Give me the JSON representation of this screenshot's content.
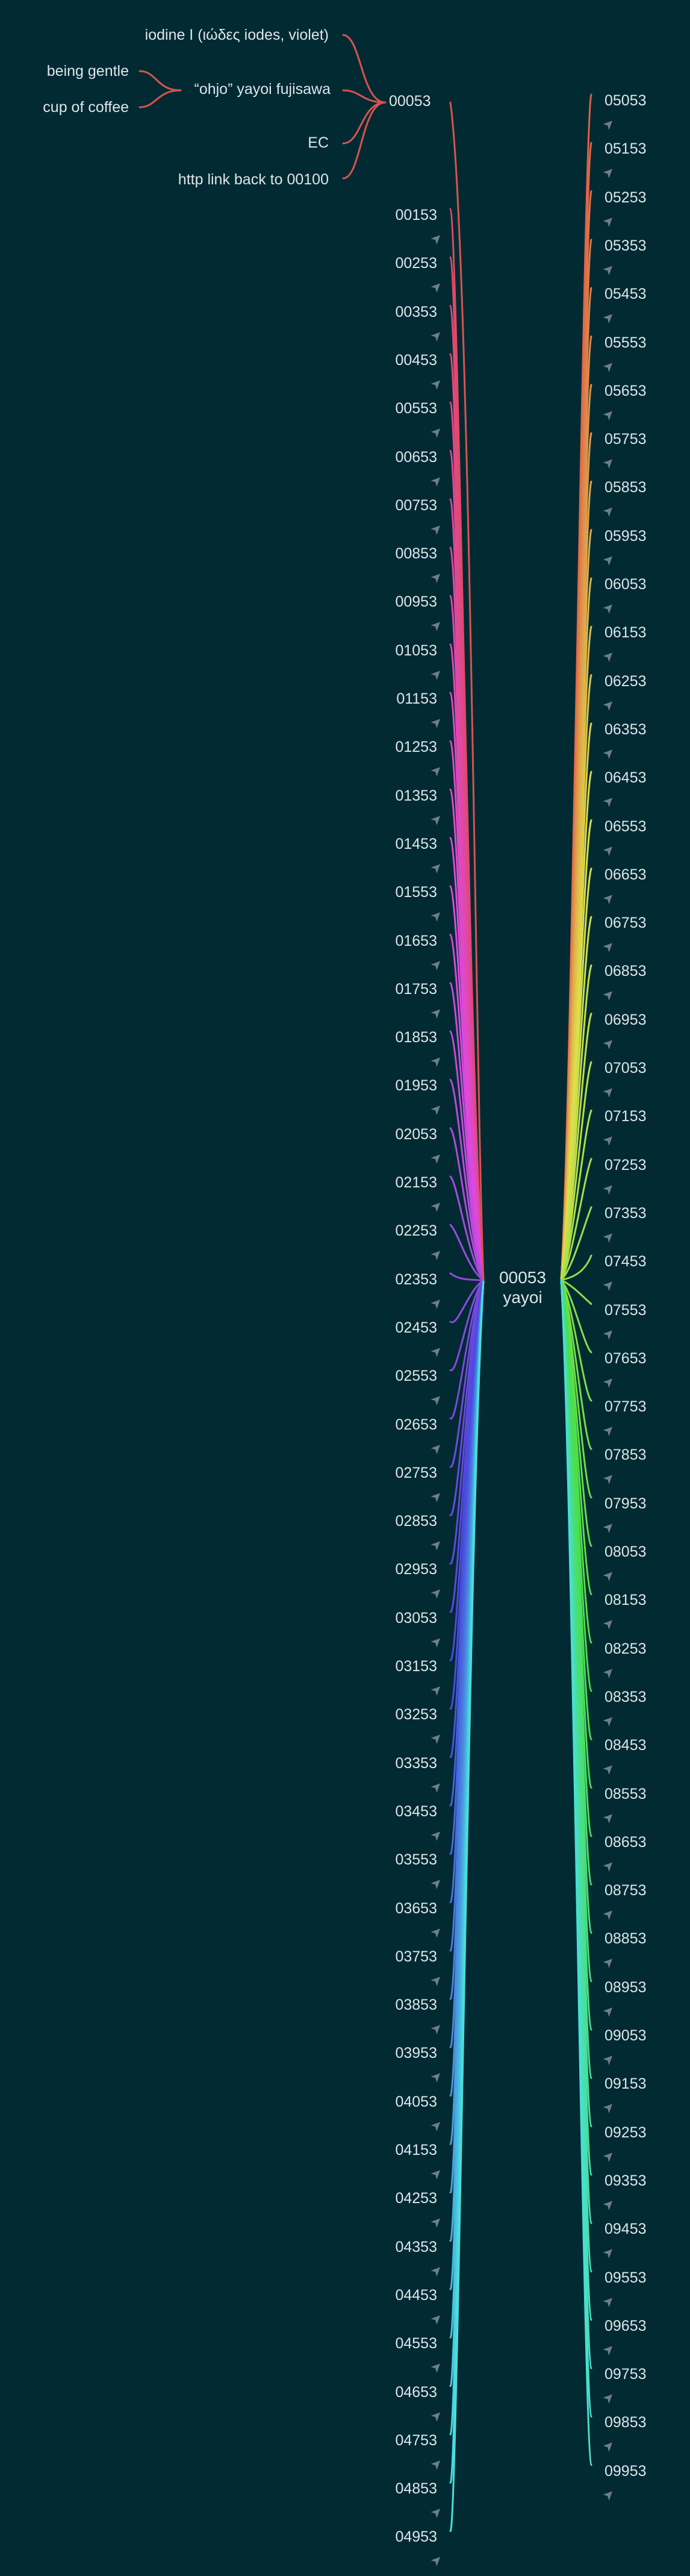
{
  "center": {
    "title": "00053",
    "subtitle": "yayoi"
  },
  "top_branch": {
    "root": "00053",
    "children": [
      "iodine I (ιώδες iodes, violet)",
      "“ohjo” yayoi fujisawa",
      "EC",
      "http link back to"
    ],
    "link_target": "00100",
    "sub_children": [
      "being gentle",
      "cup of coffee"
    ]
  },
  "left_nodes": [
    "00153",
    "00253",
    "00353",
    "00453",
    "00553",
    "00653",
    "00753",
    "00853",
    "00953",
    "01053",
    "01153",
    "01253",
    "01353",
    "01453",
    "01553",
    "01653",
    "01753",
    "01853",
    "01953",
    "02053",
    "02153",
    "02253",
    "02353",
    "02453",
    "02553",
    "02653",
    "02753",
    "02853",
    "02953",
    "03053",
    "03153",
    "03253",
    "03353",
    "03453",
    "03553",
    "03653",
    "03753",
    "03853",
    "03953",
    "04053",
    "04153",
    "04253",
    "04353",
    "04453",
    "04553",
    "04653",
    "04753",
    "04853",
    "04953"
  ],
  "right_nodes": [
    "05053",
    "05153",
    "05253",
    "05353",
    "05453",
    "05553",
    "05653",
    "05753",
    "05853",
    "05953",
    "06053",
    "06153",
    "06253",
    "06353",
    "06453",
    "06553",
    "06653",
    "06753",
    "06853",
    "06953",
    "07053",
    "07153",
    "07253",
    "07353",
    "07453",
    "07553",
    "07653",
    "07753",
    "07853",
    "07953",
    "08053",
    "08153",
    "08253",
    "08353",
    "08453",
    "08553",
    "08653",
    "08753",
    "08853",
    "08953",
    "09053",
    "09153",
    "09253",
    "09353",
    "09453",
    "09553",
    "09653",
    "09753",
    "09853",
    "09953"
  ],
  "colors": {
    "background": "#012a33",
    "text": "#dde6e8",
    "arrow": "#6f7f85",
    "branch_top": "#d9534f"
  },
  "icons": {
    "node_arrow": "arrow-up-right-icon"
  }
}
